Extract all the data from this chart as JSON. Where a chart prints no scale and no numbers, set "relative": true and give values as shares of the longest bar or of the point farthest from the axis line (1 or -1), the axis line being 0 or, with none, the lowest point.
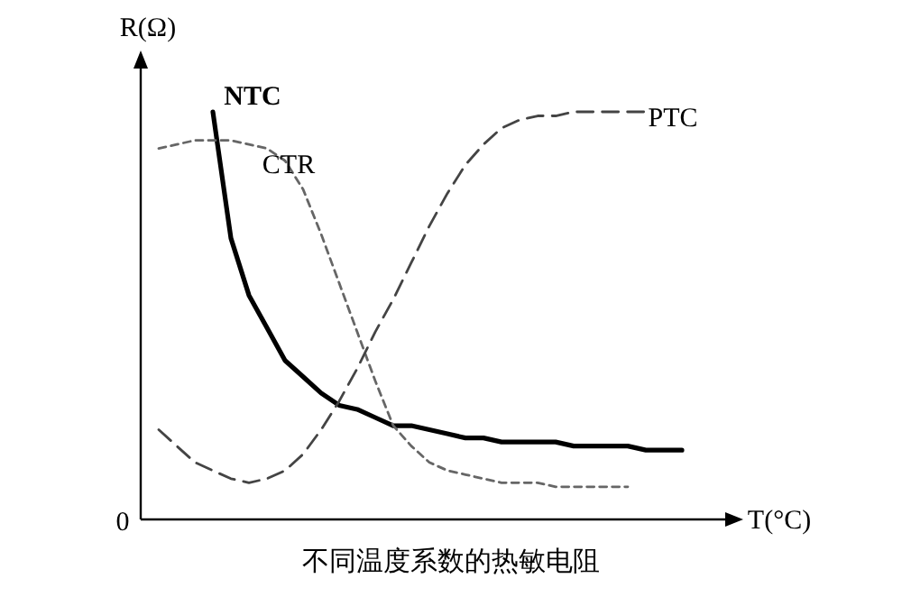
{
  "chart_data": {
    "type": "line",
    "relative": true,
    "xlabel": "T(°C)",
    "ylabel": "R(Ω)",
    "annotations": [
      "0",
      "不同温度系数的热敏电阻"
    ],
    "categories": [
      null,
      null,
      null,
      null,
      null,
      null,
      null,
      null,
      null,
      null,
      null,
      null,
      null,
      null,
      null,
      null,
      null,
      null,
      null,
      null,
      null,
      null,
      null,
      null,
      null,
      null,
      null,
      null,
      null,
      null,
      null
    ],
    "grid": false,
    "series": [
      {
        "name": "NTC",
        "color": "#000000",
        "line_style": "solid",
        "values": [
          null,
          null,
          null,
          1.0,
          0.69,
          0.55,
          0.47,
          0.39,
          0.35,
          0.31,
          0.28,
          0.27,
          0.25,
          0.23,
          0.23,
          0.22,
          0.21,
          0.2,
          0.2,
          0.19,
          0.19,
          0.19,
          0.19,
          0.18,
          0.18,
          0.18,
          0.18,
          0.17,
          0.17,
          0.17,
          null
        ]
      },
      {
        "name": "CTR",
        "color": "#666666",
        "line_style": "dotted",
        "values": [
          0.91,
          0.92,
          0.93,
          0.93,
          0.93,
          0.92,
          0.91,
          0.88,
          0.81,
          0.7,
          0.58,
          0.46,
          0.34,
          0.23,
          0.18,
          0.14,
          0.12,
          0.11,
          0.1,
          0.09,
          0.09,
          0.09,
          0.08,
          0.08,
          0.08,
          0.08,
          0.08,
          null,
          null,
          null,
          null
        ]
      },
      {
        "name": "PTC",
        "color": "#444444",
        "line_style": "dashed",
        "values": [
          0.22,
          0.18,
          0.14,
          0.12,
          0.1,
          0.09,
          0.1,
          0.12,
          0.16,
          0.22,
          0.29,
          0.37,
          0.46,
          0.54,
          0.63,
          0.72,
          0.8,
          0.87,
          0.92,
          0.96,
          0.98,
          0.99,
          0.99,
          1.0,
          1.0,
          1.0,
          1.0,
          1.0,
          null,
          null,
          null
        ]
      }
    ]
  }
}
